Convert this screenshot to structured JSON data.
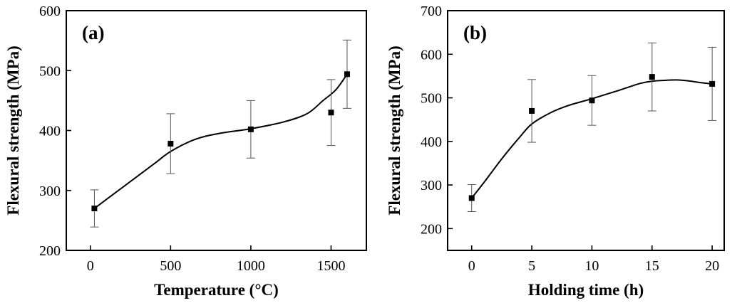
{
  "chart_data": [
    {
      "type": "scatter",
      "panel_label": "(a)",
      "xlabel": "Temperature (°C)",
      "ylabel": "Flexural strength (MPa)",
      "xlim": [
        -150,
        1720
      ],
      "ylim": [
        200,
        600
      ],
      "xticks": [
        0,
        500,
        1000,
        1500
      ],
      "yticks": [
        200,
        300,
        400,
        500,
        600
      ],
      "grid": false,
      "series": [
        {
          "x": [
            25,
            500,
            1000,
            1500,
            1600
          ],
          "y": [
            270,
            378,
            402,
            430,
            494
          ],
          "err": [
            31,
            50,
            48,
            55,
            57
          ]
        }
      ],
      "fit_curve": {
        "x": [
          25,
          200,
          400,
          500,
          650,
          800,
          1000,
          1200,
          1350,
          1450,
          1530,
          1600
        ],
        "y": [
          270,
          305,
          345,
          365,
          385,
          395,
          403,
          414,
          428,
          450,
          468,
          494
        ]
      }
    },
    {
      "type": "scatter",
      "panel_label": "(b)",
      "xlabel": "Holding time (h)",
      "ylabel": "Flexural strength (MPa)",
      "xlim": [
        -2,
        21
      ],
      "ylim": [
        150,
        700
      ],
      "xticks": [
        0,
        5,
        10,
        15,
        20
      ],
      "yticks": [
        200,
        300,
        400,
        500,
        600,
        700
      ],
      "grid": false,
      "series": [
        {
          "x": [
            0,
            5,
            10,
            15,
            20
          ],
          "y": [
            270,
            470,
            494,
            548,
            532
          ],
          "err": [
            31,
            72,
            57,
            78,
            84
          ]
        }
      ],
      "fit_curve": {
        "x": [
          0,
          1,
          2.5,
          4,
          5,
          6.5,
          8,
          10,
          12,
          14,
          15,
          16,
          17,
          18,
          19,
          20
        ],
        "y": [
          270,
          305,
          360,
          410,
          440,
          465,
          482,
          498,
          515,
          533,
          538,
          540,
          541,
          539,
          535,
          532
        ]
      }
    }
  ]
}
